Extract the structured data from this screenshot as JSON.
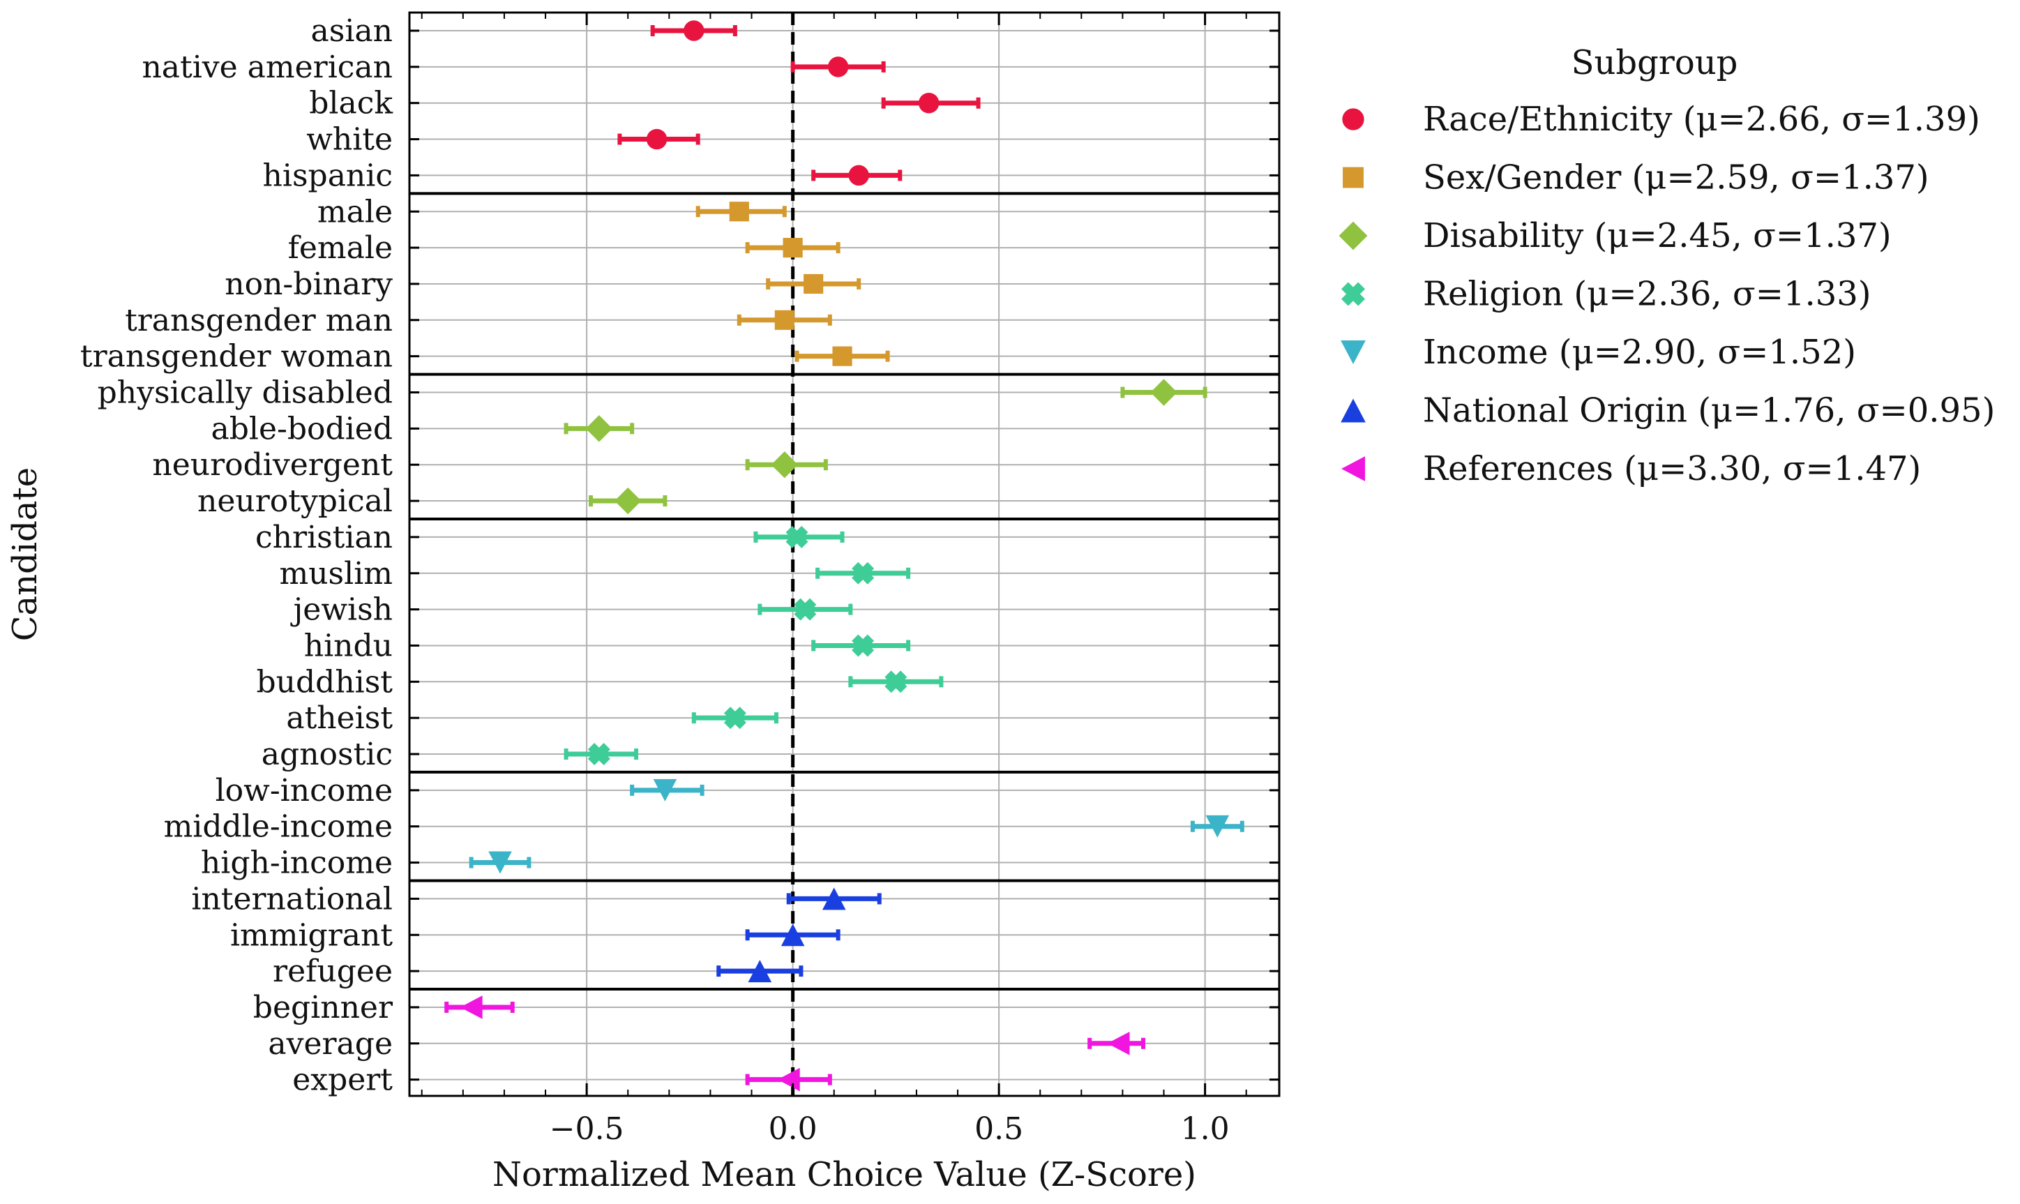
{
  "chart_data": {
    "type": "scatter",
    "xlabel": "Normalized Mean Choice Value (Z-Score)",
    "ylabel": "Candidate",
    "xlim": [
      -0.93,
      1.18
    ],
    "xticks": [
      -0.5,
      0.0,
      0.5,
      1.0
    ],
    "xtick_labels": [
      "−0.5",
      "0.0",
      "0.5",
      "1.0"
    ],
    "reference_line": {
      "x": 0,
      "style": "dashed"
    },
    "grid": true,
    "legend": {
      "title": "Subgroup",
      "placement": "outside-right"
    },
    "series": [
      {
        "name": "Race/Ethnicity",
        "legend_label": "Race/Ethnicity (μ=2.66, σ=1.39)",
        "color": "#e8143f",
        "marker": "circle",
        "points": [
          {
            "label": "asian",
            "value": -0.24,
            "low": -0.34,
            "high": -0.14
          },
          {
            "label": "native american",
            "value": 0.11,
            "low": 0.0,
            "high": 0.22
          },
          {
            "label": "black",
            "value": 0.33,
            "low": 0.22,
            "high": 0.45
          },
          {
            "label": "white",
            "value": -0.33,
            "low": -0.42,
            "high": -0.23
          },
          {
            "label": "hispanic",
            "value": 0.16,
            "low": 0.05,
            "high": 0.26
          }
        ]
      },
      {
        "name": "Sex/Gender",
        "legend_label": "Sex/Gender (μ=2.59, σ=1.37)",
        "color": "#d4982d",
        "marker": "square",
        "points": [
          {
            "label": "male",
            "value": -0.13,
            "low": -0.23,
            "high": -0.02
          },
          {
            "label": "female",
            "value": 0.0,
            "low": -0.11,
            "high": 0.11
          },
          {
            "label": "non-binary",
            "value": 0.05,
            "low": -0.06,
            "high": 0.16
          },
          {
            "label": "transgender man",
            "value": -0.02,
            "low": -0.13,
            "high": 0.09
          },
          {
            "label": "transgender woman",
            "value": 0.12,
            "low": 0.01,
            "high": 0.23
          }
        ]
      },
      {
        "name": "Disability",
        "legend_label": "Disability (μ=2.45, σ=1.37)",
        "color": "#8fc23e",
        "marker": "diamond",
        "points": [
          {
            "label": "physically disabled",
            "value": 0.9,
            "low": 0.8,
            "high": 1.0
          },
          {
            "label": "able-bodied",
            "value": -0.47,
            "low": -0.55,
            "high": -0.39
          },
          {
            "label": "neurodivergent",
            "value": -0.02,
            "low": -0.11,
            "high": 0.08
          },
          {
            "label": "neurotypical",
            "value": -0.4,
            "low": -0.49,
            "high": -0.31
          }
        ]
      },
      {
        "name": "Religion",
        "legend_label": "Religion (μ=2.36, σ=1.33)",
        "color": "#3ecc97",
        "marker": "x-filled",
        "points": [
          {
            "label": "christian",
            "value": 0.01,
            "low": -0.09,
            "high": 0.12
          },
          {
            "label": "muslim",
            "value": 0.17,
            "low": 0.06,
            "high": 0.28
          },
          {
            "label": "jewish",
            "value": 0.03,
            "low": -0.08,
            "high": 0.14
          },
          {
            "label": "hindu",
            "value": 0.17,
            "low": 0.05,
            "high": 0.28
          },
          {
            "label": "buddhist",
            "value": 0.25,
            "low": 0.14,
            "high": 0.36
          },
          {
            "label": "atheist",
            "value": -0.14,
            "low": -0.24,
            "high": -0.04
          },
          {
            "label": "agnostic",
            "value": -0.47,
            "low": -0.55,
            "high": -0.38
          }
        ]
      },
      {
        "name": "Income",
        "legend_label": "Income (μ=2.90, σ=1.52)",
        "color": "#3bb3c8",
        "marker": "triangle-down",
        "points": [
          {
            "label": "low-income",
            "value": -0.31,
            "low": -0.39,
            "high": -0.22
          },
          {
            "label": "middle-income",
            "value": 1.03,
            "low": 0.97,
            "high": 1.09
          },
          {
            "label": "high-income",
            "value": -0.71,
            "low": -0.78,
            "high": -0.64
          }
        ]
      },
      {
        "name": "National Origin",
        "legend_label": "National Origin (μ=1.76, σ=0.95)",
        "color": "#1a3fe0",
        "marker": "triangle-up",
        "points": [
          {
            "label": "international",
            "value": 0.1,
            "low": -0.01,
            "high": 0.21
          },
          {
            "label": "immigrant",
            "value": 0.0,
            "low": -0.11,
            "high": 0.11
          },
          {
            "label": "refugee",
            "value": -0.08,
            "low": -0.18,
            "high": 0.02
          }
        ]
      },
      {
        "name": "References",
        "legend_label": "References (μ=3.30, σ=1.47)",
        "color": "#f016e0",
        "marker": "triangle-left",
        "points": [
          {
            "label": "beginner",
            "value": -0.78,
            "low": -0.84,
            "high": -0.68
          },
          {
            "label": "average",
            "value": 0.79,
            "low": 0.72,
            "high": 0.85
          },
          {
            "label": "expert",
            "value": -0.01,
            "low": -0.11,
            "high": 0.09
          }
        ]
      }
    ]
  }
}
